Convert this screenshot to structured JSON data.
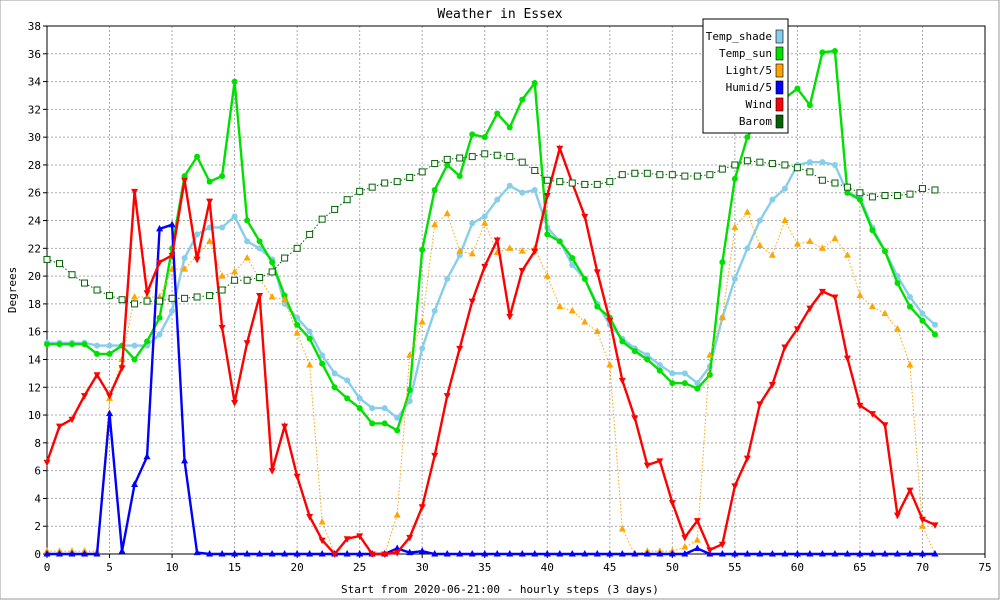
{
  "chart_data": {
    "type": "line",
    "title": "Weather in Essex",
    "xlabel": "Start from 2020-06-21:00 - hourly steps (3 days)",
    "ylabel": "Degrees",
    "xlim": [
      0,
      75
    ],
    "ylim": [
      0,
      38
    ],
    "x_ticks": [
      0,
      5,
      10,
      15,
      20,
      25,
      30,
      35,
      40,
      45,
      50,
      55,
      60,
      65,
      70,
      75
    ],
    "y_ticks": [
      0,
      2,
      4,
      6,
      8,
      10,
      12,
      14,
      16,
      18,
      20,
      22,
      24,
      26,
      28,
      30,
      32,
      34,
      36,
      38
    ],
    "grid": true,
    "legend_position": "top-right",
    "series": [
      {
        "name": "Temp_shade",
        "color": "#87ceeb",
        "marker": "circle",
        "style": "solid",
        "values": [
          15.2,
          15.2,
          15.2,
          15.2,
          15.0,
          15.0,
          15.0,
          15.0,
          15.0,
          15.8,
          17.5,
          21.3,
          23.0,
          23.5,
          23.5,
          24.3,
          22.5,
          22.0,
          21.2,
          18.0,
          17.0,
          16.0,
          14.3,
          13.0,
          12.5,
          11.2,
          10.5,
          10.5,
          9.8,
          11.0,
          14.8,
          17.5,
          19.8,
          21.5,
          23.8,
          24.3,
          25.5,
          26.5,
          26.0,
          26.2,
          23.5,
          22.5,
          20.8,
          19.8,
          18.0,
          16.5,
          15.5,
          14.8,
          14.3,
          13.6,
          13.0,
          13.0,
          12.3,
          13.5,
          17.0,
          19.8,
          22.0,
          24.0,
          25.5,
          26.3,
          28.0,
          28.2,
          28.2,
          28.0,
          26.0,
          25.7,
          23.5,
          21.8,
          20.0,
          18.5,
          17.3,
          16.5
        ]
      },
      {
        "name": "Temp_sun",
        "color": "#00e000",
        "marker": "circle",
        "style": "solid",
        "values": [
          15.1,
          15.1,
          15.1,
          15.1,
          14.4,
          14.4,
          15.0,
          14.0,
          15.3,
          17.0,
          22.0,
          27.2,
          28.6,
          26.8,
          27.2,
          34.0,
          24.0,
          22.5,
          21.0,
          18.6,
          16.5,
          15.5,
          13.7,
          12.0,
          11.2,
          10.5,
          9.4,
          9.4,
          8.9,
          11.8,
          21.9,
          26.2,
          28.0,
          27.2,
          30.2,
          30.0,
          31.7,
          30.7,
          32.7,
          33.9,
          23.0,
          22.5,
          21.3,
          19.8,
          17.8,
          17.0,
          15.3,
          14.6,
          14.0,
          13.2,
          12.3,
          12.3,
          11.9,
          12.9,
          21.0,
          27.0,
          30.0,
          31.5,
          32.5,
          32.8,
          33.5,
          32.3,
          36.1,
          36.2,
          26.0,
          25.5,
          23.3,
          21.8,
          19.5,
          17.8,
          16.8,
          15.8
        ]
      },
      {
        "name": "Light/5",
        "color": "#ffa500",
        "marker": "triangle-up",
        "style": "dotted",
        "values": [
          0.2,
          0.2,
          0.2,
          0.2,
          0.2,
          11.2,
          14.0,
          18.5,
          18.5,
          18.5,
          20.5,
          20.5,
          21.5,
          22.5,
          20.0,
          20.3,
          21.3,
          19.8,
          18.5,
          18.3,
          15.9,
          13.6,
          2.3,
          0.0,
          0.0,
          0.0,
          0.0,
          0.0,
          2.8,
          14.3,
          16.7,
          23.7,
          24.5,
          21.8,
          21.6,
          23.8,
          21.7,
          22.0,
          21.8,
          22.0,
          20.0,
          17.8,
          17.5,
          16.7,
          16.0,
          13.6,
          1.8,
          0.0,
          0.2,
          0.2,
          0.2,
          0.5,
          1.0,
          14.3,
          17.0,
          23.5,
          24.6,
          22.2,
          21.5,
          24.0,
          22.3,
          22.5,
          22.0,
          22.7,
          21.5,
          18.6,
          17.8,
          17.3,
          16.2,
          13.6,
          2.0,
          0.0
        ]
      },
      {
        "name": "Humid/5",
        "color": "#0000ff",
        "marker": "triangle-up",
        "style": "solid",
        "values": [
          0.0,
          0.0,
          0.0,
          0.0,
          0.0,
          10.1,
          0.2,
          5.0,
          7.0,
          23.4,
          23.7,
          6.7,
          0.1,
          0.0,
          0.0,
          0.0,
          0.0,
          0.0,
          0.0,
          0.0,
          0.0,
          0.0,
          0.0,
          0.0,
          0.0,
          0.0,
          0.0,
          0.0,
          0.4,
          0.1,
          0.2,
          0.0,
          0.0,
          0.0,
          0.0,
          0.0,
          0.0,
          0.0,
          0.0,
          0.0,
          0.0,
          0.0,
          0.0,
          0.0,
          0.0,
          0.0,
          0.0,
          0.0,
          0.0,
          0.0,
          0.0,
          0.0,
          0.4,
          0.0,
          0.0,
          0.0,
          0.0,
          0.0,
          0.0,
          0.0,
          0.0,
          0.0,
          0.0,
          0.0,
          0.0,
          0.0,
          0.0,
          0.0,
          0.0,
          0.0,
          0.0,
          0.0
        ]
      },
      {
        "name": "Wind",
        "color": "#ff0000",
        "marker": "triangle-down",
        "style": "solid",
        "values": [
          6.6,
          9.2,
          9.7,
          11.4,
          12.9,
          11.4,
          13.4,
          26.1,
          18.8,
          21.0,
          21.5,
          26.9,
          21.2,
          25.4,
          16.3,
          10.9,
          15.2,
          18.6,
          6.0,
          9.2,
          5.6,
          2.7,
          1.0,
          0.0,
          1.1,
          1.3,
          0.0,
          0.0,
          0.1,
          1.2,
          3.4,
          7.1,
          11.4,
          14.8,
          18.2,
          20.7,
          22.6,
          17.1,
          20.4,
          21.8,
          25.8,
          29.2,
          26.7,
          24.3,
          20.3,
          16.8,
          12.5,
          9.8,
          6.4,
          6.7,
          3.7,
          1.2,
          2.4,
          0.3,
          0.7,
          4.9,
          6.9,
          10.8,
          12.2,
          14.9,
          16.2,
          17.7,
          18.9,
          18.5,
          14.1,
          10.7,
          10.1,
          9.3,
          2.8,
          4.6,
          2.5,
          2.1
        ]
      },
      {
        "name": "Barom",
        "color": "#006400",
        "marker": "square",
        "style": "dotted",
        "values": [
          21.2,
          20.9,
          20.1,
          19.5,
          19.0,
          18.6,
          18.3,
          18.0,
          18.2,
          18.2,
          18.4,
          18.4,
          18.5,
          18.6,
          19.0,
          19.7,
          19.7,
          19.9,
          20.3,
          21.3,
          22.0,
          23.0,
          24.1,
          24.8,
          25.5,
          26.1,
          26.4,
          26.7,
          26.8,
          27.1,
          27.5,
          28.1,
          28.4,
          28.5,
          28.6,
          28.8,
          28.7,
          28.6,
          28.2,
          27.6,
          26.9,
          26.8,
          26.7,
          26.6,
          26.6,
          26.8,
          27.3,
          27.4,
          27.4,
          27.3,
          27.3,
          27.2,
          27.2,
          27.3,
          27.7,
          28.0,
          28.3,
          28.2,
          28.1,
          28.0,
          27.8,
          27.5,
          26.9,
          26.7,
          26.4,
          26.0,
          25.7,
          25.8,
          25.8,
          25.9,
          26.3,
          26.2
        ]
      }
    ]
  }
}
